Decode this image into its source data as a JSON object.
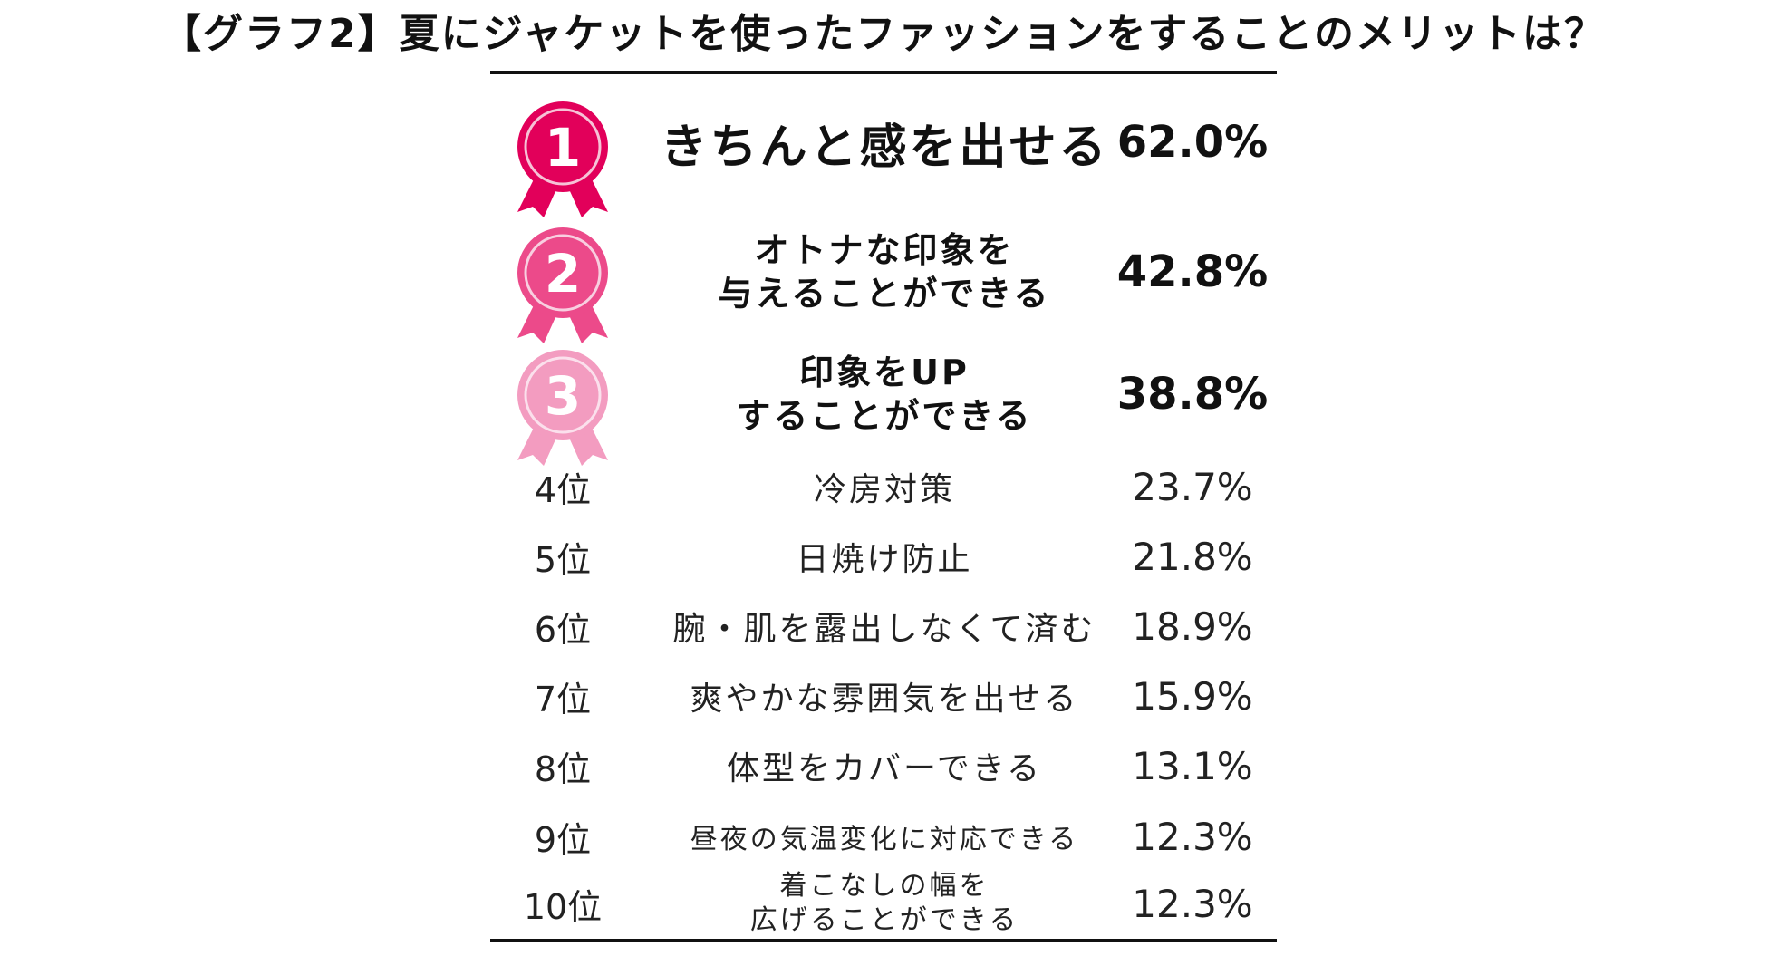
{
  "title": "【グラフ2】夏にジャケットを使ったファッションをすることのメリットは？",
  "medals": [
    {
      "number": "1",
      "color": "#e2005a",
      "ring": "#f6c2d6"
    },
    {
      "number": "2",
      "color": "#ec4a8a",
      "ring": "#f8cfe0"
    },
    {
      "number": "3",
      "color": "#f39cc0",
      "ring": "#fbe0ec"
    }
  ],
  "chart_data": {
    "type": "table",
    "title": "【グラフ2】夏にジャケットを使ったファッションをすることのメリットは？",
    "rows": [
      {
        "rank": "1",
        "label_lines": [
          "きちんと感を出せる"
        ],
        "value": "62.0%",
        "percent": 62.0
      },
      {
        "rank": "2",
        "label_lines": [
          "オトナな印象を",
          "与えることができる"
        ],
        "value": "42.8%",
        "percent": 42.8
      },
      {
        "rank": "3",
        "label_lines": [
          "印象をUP",
          "することができる"
        ],
        "value": "38.8%",
        "percent": 38.8
      },
      {
        "rank": "4位",
        "label_lines": [
          "冷房対策"
        ],
        "value": "23.7%",
        "percent": 23.7
      },
      {
        "rank": "5位",
        "label_lines": [
          "日焼け防止"
        ],
        "value": "21.8%",
        "percent": 21.8
      },
      {
        "rank": "6位",
        "label_lines": [
          "腕・肌を露出しなくて済む"
        ],
        "value": "18.9%",
        "percent": 18.9
      },
      {
        "rank": "7位",
        "label_lines": [
          "爽やかな雰囲気を出せる"
        ],
        "value": "15.9%",
        "percent": 15.9
      },
      {
        "rank": "8位",
        "label_lines": [
          "体型をカバーできる"
        ],
        "value": "13.1%",
        "percent": 13.1
      },
      {
        "rank": "9位",
        "label_lines": [
          "昼夜の気温変化に対応できる"
        ],
        "value": "12.3%",
        "percent": 12.3
      },
      {
        "rank": "10位",
        "label_lines": [
          "着こなしの幅を",
          "広げることができる"
        ],
        "value": "12.3%",
        "percent": 12.3
      }
    ]
  }
}
